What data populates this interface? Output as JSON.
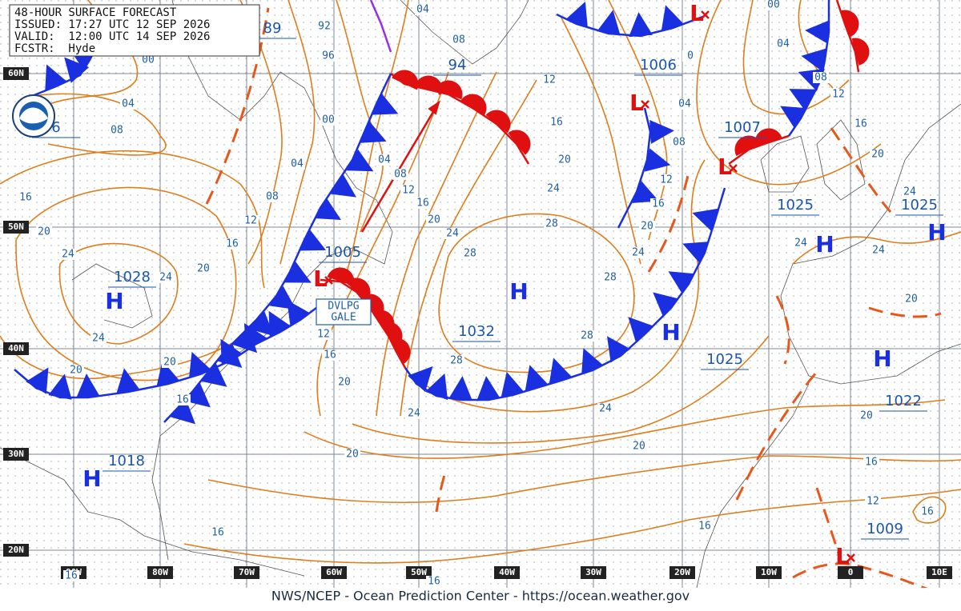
{
  "header": {
    "lines": [
      "48-HOUR SURFACE FORECAST",
      "ISSUED: 17:27 UTC 12 SEP 2026",
      "VALID:  12:00 UTC 14 SEP 2026",
      "FCSTR:  Hyde"
    ]
  },
  "latitude_labels": [
    "60N",
    "50N",
    "40N",
    "30N",
    "20N"
  ],
  "longitude_labels": [
    "90W",
    "80W",
    "70W",
    "60W",
    "50W",
    "40W",
    "30W",
    "20W",
    "10W",
    "0",
    "10E"
  ],
  "pressure_symbols": [
    "H",
    "L",
    "H",
    "H",
    "H",
    "H",
    "H",
    "H",
    "L",
    "L",
    "L",
    "L"
  ],
  "pressure_labels": [
    "1028",
    "1005",
    "1032",
    "1025",
    "1025",
    "1025",
    "1022",
    "1018",
    "1009",
    "1006",
    "1007",
    "94",
    "89",
    "6"
  ],
  "isobar_labels": [
    "00",
    "04",
    "08",
    "92",
    "96",
    "00",
    "04",
    "08",
    "12",
    "16",
    "20",
    "24",
    "24",
    "24",
    "20",
    "16",
    "20",
    "20",
    "16",
    "16",
    "12",
    "20",
    "04",
    "08",
    "12",
    "16",
    "20",
    "24",
    "28",
    "28",
    "28",
    "28",
    "28",
    "24",
    "24",
    "20",
    "20",
    "16",
    "16",
    "16",
    "04",
    "08",
    "12",
    "16",
    "20",
    "24",
    "00",
    "04",
    "08",
    "12",
    "16",
    "20",
    "24",
    "0",
    "04",
    "08",
    "12",
    "16",
    "20",
    "24",
    "24",
    "24",
    "20",
    "20",
    "16",
    "12",
    "16",
    "16"
  ],
  "annotation": [
    "DVLPG",
    "GALE"
  ],
  "footer": "NWS/NCEP - Ocean Prediction Center - https://ocean.weather.gov"
}
